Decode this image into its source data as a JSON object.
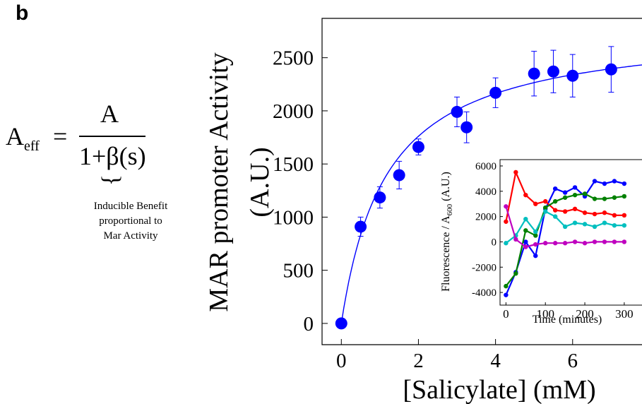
{
  "panel_label": "b",
  "equation": {
    "lhs": "A",
    "lhs_sub": "eff",
    "equals": "=",
    "numerator": "A",
    "denominator": "1+β(s)",
    "brace": "}",
    "note_lines": [
      "Inducible Benefit",
      "proportional to",
      "Mar Activity"
    ]
  },
  "chart_data": [
    {
      "type": "scatter",
      "title": "",
      "xlabel": "[Salicylate] (mM)",
      "ylabel_lines": [
        "MAR promoter Activity",
        "(A.U.)"
      ],
      "xlim": [
        -0.5,
        7.8
      ],
      "ylim": [
        -200,
        2870
      ],
      "xticks": [
        0,
        2,
        4,
        6
      ],
      "yticks": [
        0,
        500,
        1000,
        1500,
        2000,
        2500
      ],
      "points": [
        {
          "x": 0,
          "y": 0,
          "err": 0
        },
        {
          "x": 0.5,
          "y": 910,
          "err": 90
        },
        {
          "x": 1,
          "y": 1185,
          "err": 100
        },
        {
          "x": 1.5,
          "y": 1395,
          "err": 130
        },
        {
          "x": 2,
          "y": 1660,
          "err": 75
        },
        {
          "x": 3,
          "y": 1990,
          "err": 140
        },
        {
          "x": 3.25,
          "y": 1845,
          "err": 145
        },
        {
          "x": 4,
          "y": 2170,
          "err": 140
        },
        {
          "x": 5,
          "y": 2350,
          "err": 210
        },
        {
          "x": 5.5,
          "y": 2370,
          "err": 200
        },
        {
          "x": 6,
          "y": 2330,
          "err": 200
        },
        {
          "x": 7,
          "y": 2390,
          "err": 215
        }
      ],
      "fit_curve": {
        "ymax": 2800,
        "k": 1.18
      },
      "colors": {
        "points": "#0000ff",
        "fit": "#0000ff"
      }
    },
    {
      "type": "line",
      "title": "",
      "xlabel": "Time (minutes)",
      "ylabel": "Fluorescence / A",
      "ylabel_sub": "600",
      "ylabel_suffix": " (A.U.)",
      "xlim": [
        -15,
        345
      ],
      "ylim": [
        -5000,
        6500
      ],
      "xticks": [
        0,
        100,
        200,
        300
      ],
      "yticks": [
        -4000,
        -2000,
        0,
        2000,
        4000,
        6000
      ],
      "x": [
        0,
        25,
        50,
        75,
        100,
        125,
        150,
        175,
        200,
        225,
        250,
        275,
        300
      ],
      "series": [
        {
          "color": "#0000ff",
          "values": [
            -4200,
            -2400,
            0,
            -1100,
            2600,
            4200,
            3900,
            4300,
            3600,
            4800,
            4600,
            4800,
            4600
          ]
        },
        {
          "color": "#ff0000",
          "values": [
            1600,
            5500,
            3700,
            3000,
            3200,
            2500,
            2400,
            2600,
            2300,
            2200,
            2300,
            2100,
            2100
          ]
        },
        {
          "color": "#008000",
          "values": [
            -3500,
            -2500,
            900,
            500,
            2700,
            3200,
            3500,
            3700,
            3800,
            3400,
            3400,
            3500,
            3600
          ]
        },
        {
          "color": "#00bfbf",
          "values": [
            -100,
            500,
            1800,
            800,
            2400,
            2000,
            1200,
            1500,
            1400,
            1200,
            1500,
            1300,
            1300
          ]
        },
        {
          "color": "#bf00bf",
          "values": [
            2800,
            200,
            -400,
            -200,
            -100,
            -100,
            -100,
            0,
            -100,
            0,
            0,
            0,
            0
          ]
        }
      ]
    }
  ]
}
